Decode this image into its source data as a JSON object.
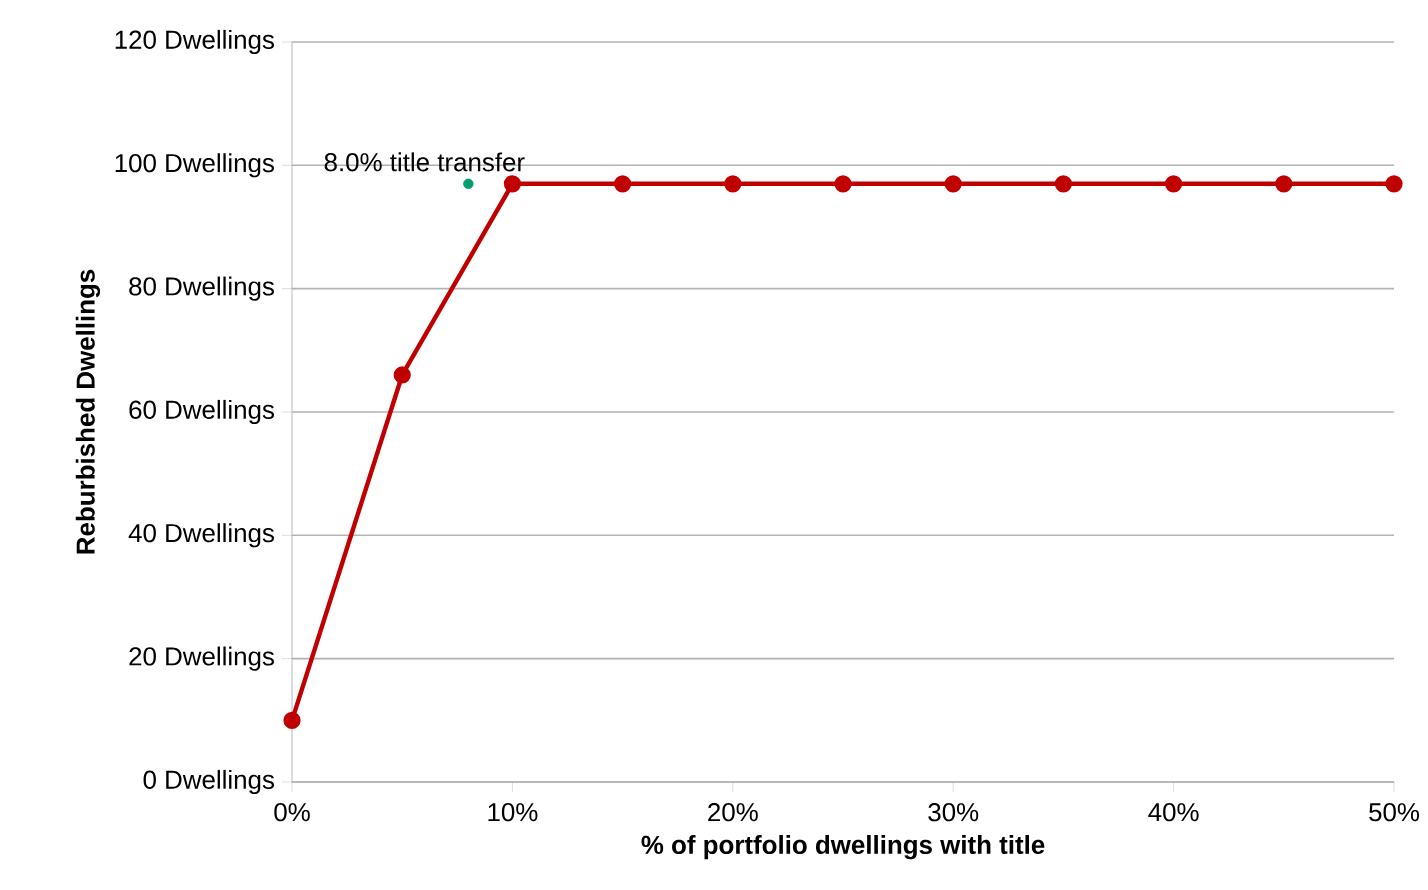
{
  "chart_data": {
    "type": "line",
    "xlabel": "% of portfolio dwellings with title",
    "ylabel": "Reburbished  Dwellings",
    "x": [
      0,
      5,
      10,
      15,
      20,
      25,
      30,
      35,
      40,
      45,
      50
    ],
    "series": [
      {
        "color": "#c00000",
        "values": [
          10,
          66,
          97,
          97,
          97,
          97,
          97,
          97,
          97,
          97,
          97
        ],
        "marker": "circle"
      },
      {
        "type": "scatter",
        "x": [
          8
        ],
        "color": "#00a070",
        "values": [
          97
        ],
        "marker": "circle"
      }
    ],
    "annotations": [
      {
        "text": "8.0% title transfer",
        "x": 8,
        "y": 97
      }
    ],
    "xlim": [
      0,
      50
    ],
    "xticks": [
      {
        "value": 0,
        "label": "0%"
      },
      {
        "value": 10,
        "label": "10%"
      },
      {
        "value": 20,
        "label": "20%"
      },
      {
        "value": 30,
        "label": "30%"
      },
      {
        "value": 40,
        "label": "40%"
      },
      {
        "value": 50,
        "label": "50%"
      }
    ],
    "ylim": [
      0,
      120
    ],
    "yticks": [
      {
        "value": 0,
        "label": "0 Dwellings"
      },
      {
        "value": 20,
        "label": "20 Dwellings"
      },
      {
        "value": 40,
        "label": "40 Dwellings"
      },
      {
        "value": 60,
        "label": "60 Dwellings"
      },
      {
        "value": 80,
        "label": "80 Dwellings"
      },
      {
        "value": 100,
        "label": "100 Dwellings"
      },
      {
        "value": 120,
        "label": "120 Dwellings"
      }
    ],
    "grid": "y"
  }
}
